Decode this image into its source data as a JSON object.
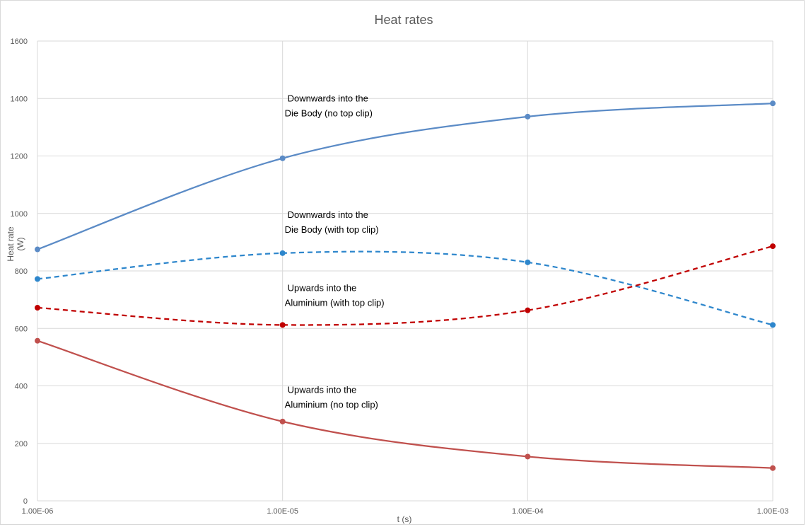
{
  "chart_data": {
    "type": "line",
    "title": "Heat rates",
    "xlabel": "t (s)",
    "ylabel": "Heat rate (W)",
    "ylabel_lines": [
      "Heat rate",
      "(W)"
    ],
    "x_scale": "log",
    "x": [
      1e-06,
      1e-05,
      0.0001,
      0.001
    ],
    "x_tick_labels": [
      "1.00E-06",
      "1.00E-05",
      "1.00E-04",
      "1.00E-03"
    ],
    "xlim": [
      1e-06,
      0.001
    ],
    "ylim": [
      0,
      1600
    ],
    "y_ticks": [
      0,
      200,
      400,
      600,
      800,
      1000,
      1200,
      1400,
      1600
    ],
    "grid": true,
    "series": [
      {
        "values": [
          875,
          1192,
          1337,
          1383
        ],
        "color": "#5b8bc6",
        "style": "solid"
      },
      {
        "values": [
          772,
          862,
          830,
          612
        ],
        "color": "#2d86cc",
        "style": "dashed"
      },
      {
        "values": [
          672,
          612,
          663,
          886
        ],
        "color": "#c00000",
        "style": "dashed"
      },
      {
        "values": [
          557,
          276,
          154,
          114
        ],
        "color": "#c0504d",
        "style": "solid"
      }
    ],
    "annotations": [
      {
        "lines": [
          "Downwards into the",
          "Die Body (no top clip)"
        ],
        "x": 1e-05,
        "y": 1390
      },
      {
        "lines": [
          "Downwards into the",
          "Die Body (with top clip)"
        ],
        "x": 1e-05,
        "y": 985
      },
      {
        "lines": [
          "Upwards into the",
          "Aluminium (with top clip)"
        ],
        "x": 1e-05,
        "y": 730
      },
      {
        "lines": [
          "Upwards into the",
          "Aluminium (no top clip)"
        ],
        "x": 1e-05,
        "y": 375
      }
    ]
  }
}
